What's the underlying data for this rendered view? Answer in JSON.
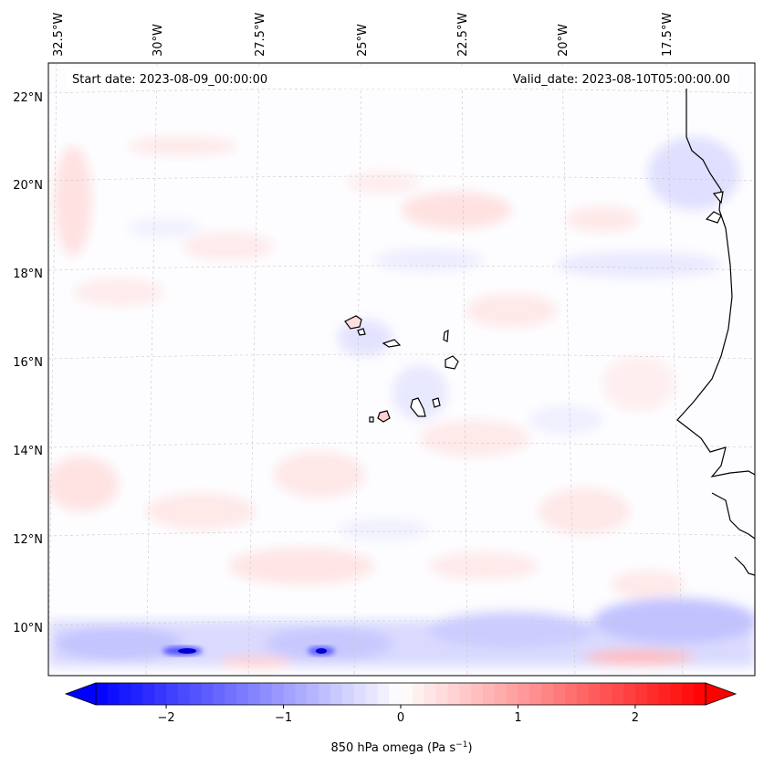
{
  "header": {
    "start_date": "Start date: 2023-08-09_00:00:00",
    "valid_date": "Valid_date: 2023-08-10T05:00:00.00"
  },
  "map": {
    "lon_labels": [
      "32.5°W",
      "30°W",
      "27.5°W",
      "25°W",
      "22.5°W",
      "20°W",
      "17.5°W"
    ],
    "lat_labels": [
      "22°N",
      "20°N",
      "18°N",
      "16°N",
      "14°N",
      "12°N",
      "10°N"
    ],
    "colors": {
      "neg_max": "#0000ff",
      "pos_max": "#ff0000",
      "neutral": "#ffffff",
      "coast": "#000000",
      "grid": "#bbbbbb"
    }
  },
  "colorbar": {
    "ticks": [
      "−2",
      "−1",
      "0",
      "1",
      "2"
    ],
    "tick_values": [
      -2,
      -1,
      0,
      1,
      2
    ],
    "range": [
      -2.6,
      2.6
    ],
    "label_main": "850 hPa omega (Pa s",
    "label_sup": "−1",
    "label_end": ")"
  }
}
